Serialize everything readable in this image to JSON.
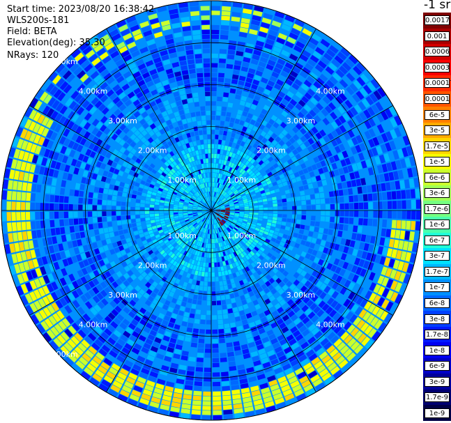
{
  "header": {
    "start_time": "Start time: 2023/08/20 16:38:42",
    "instrument": "WLS200s-181",
    "field": "Field: BETA",
    "elevation": "Elevation(deg): 35.30",
    "nrays": "NRays: 120"
  },
  "units_label": "-1 sr",
  "chart_data": {
    "type": "heatmap",
    "projection": "polar-ppi",
    "field": "BETA",
    "elevation_deg": 35.3,
    "n_rays": 120,
    "max_range_km": 5.0,
    "ring_labels": [
      "1.00km",
      "2.00km",
      "3.00km",
      "4.00km",
      "5.00km"
    ],
    "colorbar": {
      "scale": "log",
      "ticks": [
        "0.0017",
        "0.001",
        "0.0006",
        "0.0003",
        "0.00017",
        "0.0001",
        "6e-5",
        "3e-5",
        "1.7e-5",
        "1e-5",
        "6e-6",
        "3e-6",
        "1.7e-6",
        "1e-6",
        "6e-7",
        "3e-7",
        "1.7e-7",
        "1e-7",
        "6e-8",
        "3e-8",
        "1.7e-8",
        "1e-8",
        "6e-9",
        "3e-9",
        "1.7e-9",
        "1e-9"
      ],
      "colors": [
        "#7f0000",
        "#a80000",
        "#d20000",
        "#fa0000",
        "#ff2a00",
        "#ff5500",
        "#ff8000",
        "#ffaa00",
        "#ffd500",
        "#f6ff01",
        "#cbff2c",
        "#a1ff56",
        "#76ff81",
        "#4bffac",
        "#21ffd6",
        "#00e0ff",
        "#00b8ff",
        "#0090ff",
        "#0068ff",
        "#0040ff",
        "#0018ff",
        "#0000f1",
        "#0000c6",
        "#00009b",
        "#000070",
        "#000045"
      ]
    },
    "features": [
      {
        "description": "aerosol layer ring",
        "range_km": 4.6,
        "level": "1.7e-5"
      },
      {
        "description": "near-field enhanced return",
        "range_km": 0.5,
        "level": "1e-4"
      }
    ]
  }
}
